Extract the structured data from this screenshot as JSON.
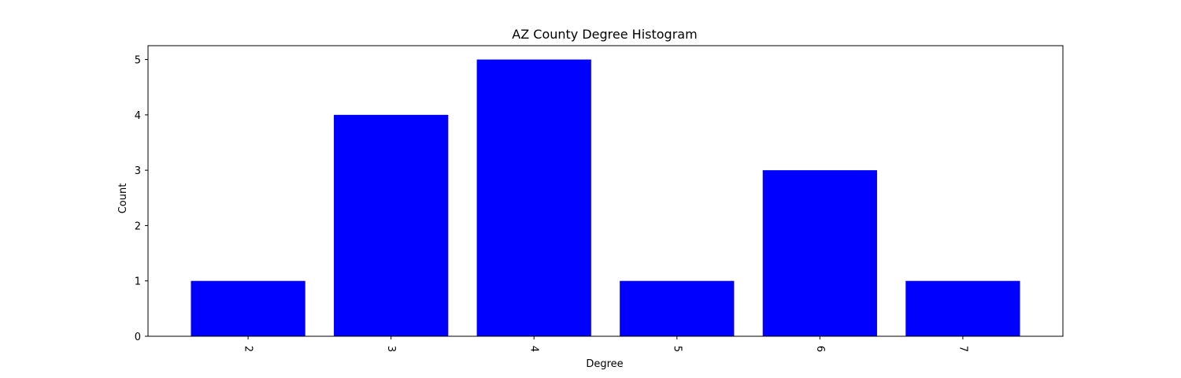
{
  "chart_data": {
    "type": "bar",
    "title": "AZ County Degree Histogram",
    "xlabel": "Degree",
    "ylabel": "Count",
    "categories": [
      "2",
      "3",
      "4",
      "5",
      "6",
      "7"
    ],
    "values": [
      1,
      4,
      5,
      1,
      3,
      1
    ],
    "ylim": [
      0,
      5.25
    ],
    "yticks": [
      0,
      1,
      2,
      3,
      4,
      5
    ],
    "bar_color": "#0000ff",
    "grid": false,
    "xtick_rotation_deg": -90
  }
}
